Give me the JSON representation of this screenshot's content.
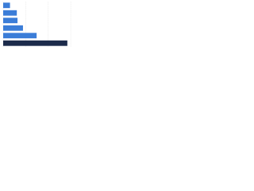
{
  "chart_data": {
    "type": "bar",
    "orientation": "horizontal",
    "categories": [
      null,
      null,
      null,
      null,
      null,
      null
    ],
    "values": [
      10,
      20,
      21,
      29,
      49,
      94
    ],
    "colors": [
      "#3b7dd8",
      "#3b7dd8",
      "#3b7dd8",
      "#3b7dd8",
      "#3b7dd8",
      "#1c2b4b"
    ],
    "xlim": [
      0,
      100
    ],
    "xticks": [
      0,
      33,
      66,
      99
    ],
    "grid": true
  }
}
